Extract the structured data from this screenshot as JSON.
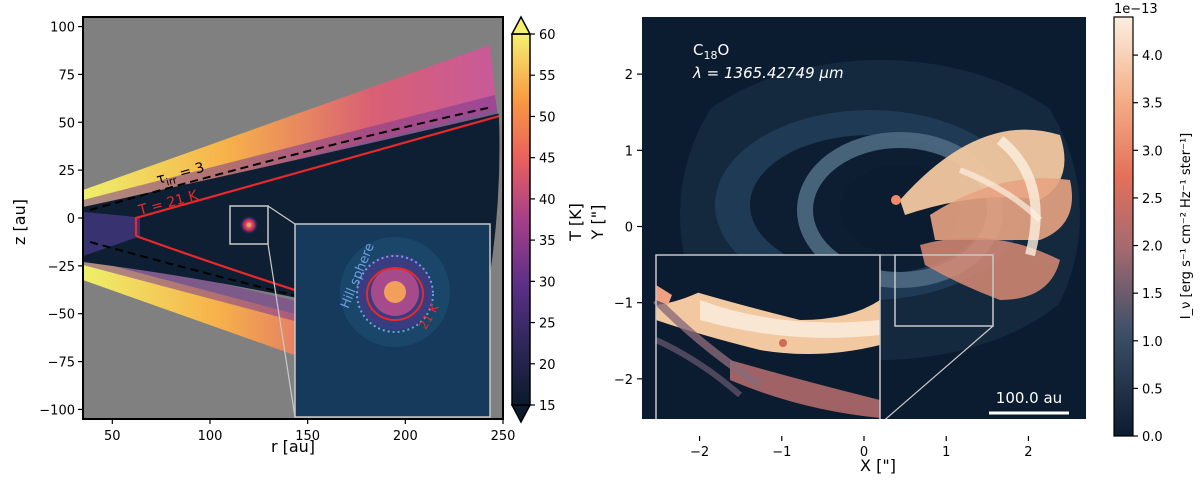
{
  "chart_data": [
    {
      "type": "heatmap",
      "title": "",
      "xlabel": "r [au]",
      "ylabel": "z [au]",
      "xlim": [
        35,
        250
      ],
      "ylim": [
        -105,
        105
      ],
      "xticks": [
        "50",
        "100",
        "150",
        "200",
        "250"
      ],
      "xtick_values": [
        50,
        100,
        150,
        200,
        250
      ],
      "yticks": [
        "100",
        "75",
        "50",
        "25",
        "0",
        "−25",
        "−50",
        "−75",
        "−100"
      ],
      "ytick_values": [
        100,
        75,
        50,
        25,
        0,
        -25,
        -50,
        -75,
        -100
      ],
      "colorbar": {
        "label": "T [K]",
        "ticks": [
          "60",
          "55",
          "50",
          "45",
          "40",
          "35",
          "30",
          "25",
          "20",
          "15"
        ],
        "tick_values": [
          60,
          55,
          50,
          45,
          40,
          35,
          30,
          25,
          20,
          15
        ],
        "range": [
          15,
          60
        ],
        "extend": "both"
      },
      "annotations": {
        "tau_label": "τ",
        "tau_sub": "irr",
        "tau_rest": " = 3",
        "temp_contour": "T = 21 K",
        "hill_sphere": "Hill sphere",
        "inset_contour": "21 K"
      },
      "planet": {
        "r": 120,
        "z": 0
      },
      "colors": {
        "contour": "#e8282b",
        "dashed": "#000000",
        "hill": "#6f9ee0",
        "background": "#808080"
      }
    },
    {
      "type": "heatmap",
      "title": "",
      "xlabel": "X [\"]",
      "ylabel": "Y [\"]",
      "xlim": [
        -2.7,
        2.7
      ],
      "ylim": [
        -2.75,
        2.75
      ],
      "xticks": [
        "−2",
        "−1",
        "0",
        "1",
        "2"
      ],
      "xtick_values": [
        -2,
        -1,
        0,
        1,
        2
      ],
      "yticks": [
        "2",
        "1",
        "0",
        "−1",
        "−2"
      ],
      "ytick_values": [
        2,
        1,
        0,
        -1,
        -2
      ],
      "species": "C",
      "species_sub": "18",
      "species_rest": "O",
      "wavelength_label": "λ = 1365.42749 μm",
      "scalebar_label": "100.0 au",
      "colorbar": {
        "multiplier": "1e−13",
        "label": "I_ν [erg s⁻¹ cm⁻² Hz⁻¹ ster⁻¹]",
        "ticks": [
          "4.0",
          "3.5",
          "3.0",
          "2.5",
          "2.0",
          "1.5",
          "1.0",
          "0.5",
          "0.0"
        ],
        "tick_values": [
          4.0,
          3.5,
          3.0,
          2.5,
          2.0,
          1.5,
          1.0,
          0.5,
          0.0
        ],
        "range": [
          0.0,
          4.4
        ]
      },
      "colors": {
        "background": "#0b1b30",
        "emission": "#f6d3a4"
      }
    }
  ]
}
